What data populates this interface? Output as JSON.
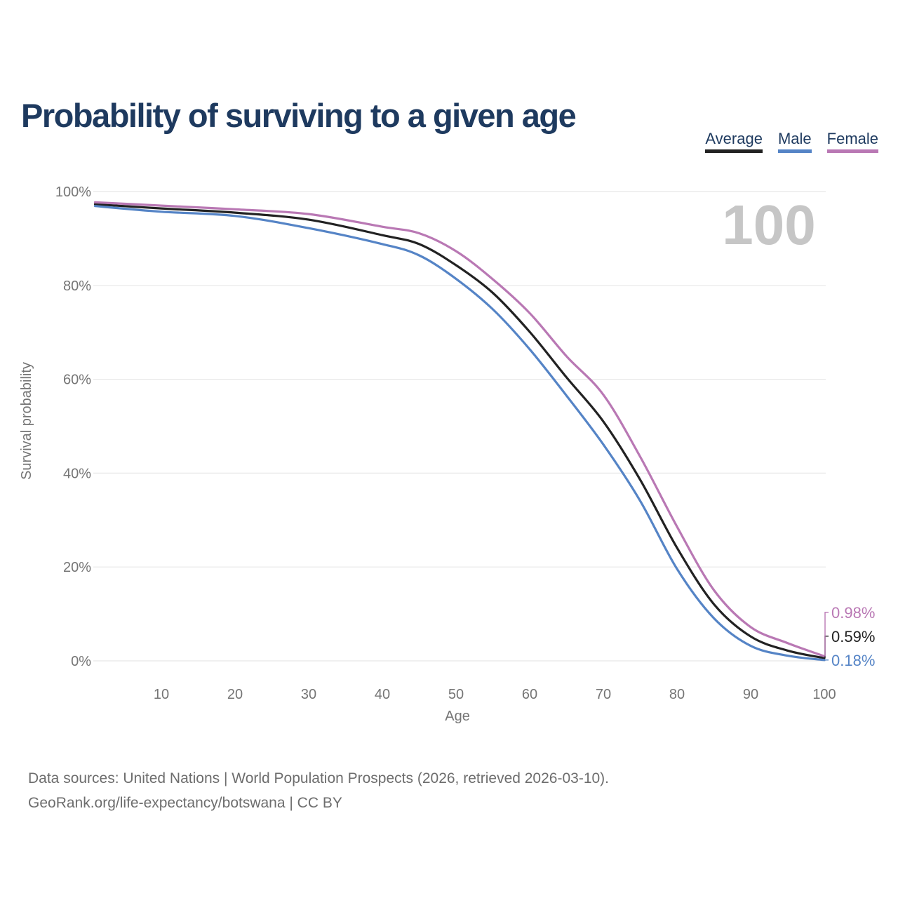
{
  "chart_data": {
    "type": "line",
    "title": "Probability of surviving to a given age",
    "xlabel": "Age",
    "ylabel": "Survival probability",
    "xlim": [
      0,
      100
    ],
    "ylim": [
      0,
      100
    ],
    "grid": "horizontal",
    "legend_position": "top-right",
    "watermark_age": "100",
    "x": [
      1,
      10,
      20,
      30,
      40,
      45,
      50,
      55,
      60,
      65,
      70,
      75,
      80,
      85,
      90,
      95,
      100
    ],
    "series": [
      {
        "name": "Average",
        "color": "#222222",
        "end_label": "0.59%",
        "values": [
          97.3,
          96.4,
          95.5,
          94.0,
          90.7,
          88.8,
          84.3,
          78.4,
          70.1,
          60.4,
          51.0,
          38.6,
          24.1,
          12.1,
          5.2,
          2.2,
          0.59
        ]
      },
      {
        "name": "Male",
        "color": "#5584c6",
        "end_label": "0.18%",
        "values": [
          96.9,
          95.7,
          94.8,
          92.2,
          88.8,
          86.4,
          81.4,
          74.9,
          66.4,
          56.5,
          46.1,
          34.1,
          19.6,
          9.1,
          3.2,
          1.1,
          0.18
        ]
      },
      {
        "name": "Female",
        "color": "#b978b4",
        "end_label": "0.98%",
        "values": [
          97.7,
          97.0,
          96.2,
          95.2,
          92.5,
          91.1,
          87.3,
          81.3,
          74.1,
          64.9,
          56.7,
          43.5,
          28.6,
          15.1,
          7.2,
          3.8,
          0.98
        ]
      }
    ],
    "yticks": [
      {
        "value": 0,
        "label": "0%"
      },
      {
        "value": 20,
        "label": "20%"
      },
      {
        "value": 40,
        "label": "40%"
      },
      {
        "value": 60,
        "label": "60%"
      },
      {
        "value": 80,
        "label": "80%"
      },
      {
        "value": 100,
        "label": "100%"
      }
    ],
    "xticks": [
      {
        "value": 10,
        "label": "10"
      },
      {
        "value": 20,
        "label": "20"
      },
      {
        "value": 30,
        "label": "30"
      },
      {
        "value": 40,
        "label": "40"
      },
      {
        "value": 50,
        "label": "50"
      },
      {
        "value": 60,
        "label": "60"
      },
      {
        "value": 70,
        "label": "70"
      },
      {
        "value": 80,
        "label": "80"
      },
      {
        "value": 90,
        "label": "90"
      },
      {
        "value": 100,
        "label": "100"
      }
    ],
    "colors": {
      "title": "#1e3a5f",
      "axis_text": "#757575",
      "gridline": "#e8e8e8",
      "watermark": "#c6c6c6"
    }
  },
  "footer": {
    "line1": "Data sources: United Nations | World Population Prospects (2026, retrieved 2026-03-10).",
    "line2": "GeoRank.org/life-expectancy/botswana | CC BY"
  }
}
